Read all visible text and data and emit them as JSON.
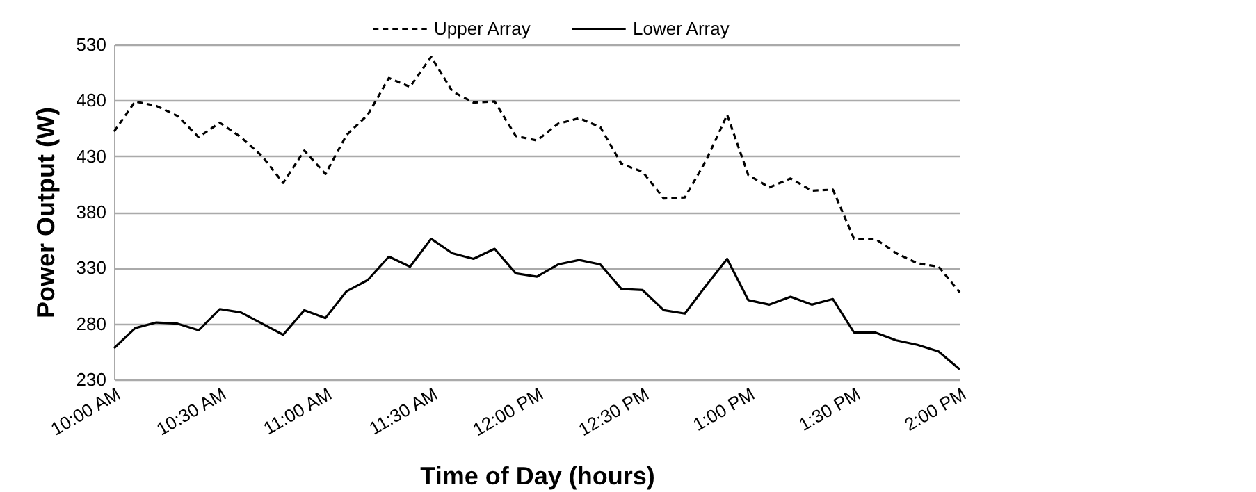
{
  "chart_data": {
    "type": "line",
    "xlabel": "Time of Day (hours)",
    "ylabel": "Power Output (W)",
    "categories": [
      "10:00 AM",
      null,
      null,
      null,
      null,
      "10:30 AM",
      null,
      null,
      null,
      null,
      "11:00 AM",
      null,
      null,
      null,
      null,
      "11:30 AM",
      null,
      null,
      null,
      null,
      "12:00 PM",
      null,
      null,
      null,
      null,
      "12:30 PM",
      null,
      null,
      null,
      null,
      "1:00 PM",
      null,
      null,
      null,
      null,
      "1:30 PM",
      null,
      null,
      null,
      null,
      "2:00 PM"
    ],
    "series": [
      {
        "name": "Upper Array",
        "color": "#000000",
        "line_style": "dashed",
        "values": [
          452,
          479,
          475,
          466,
          447,
          460,
          447,
          430,
          406,
          435,
          414,
          449,
          467,
          500,
          492,
          519,
          488,
          478,
          479,
          448,
          444,
          459,
          464,
          456,
          423,
          416,
          392,
          393,
          426,
          467,
          413,
          402,
          410,
          399,
          400,
          356,
          356,
          343,
          334,
          331,
          308
        ]
      },
      {
        "name": "Lower Array",
        "color": "#000000",
        "line_style": "solid",
        "values": [
          258,
          276,
          281,
          280,
          274,
          293,
          290,
          280,
          270,
          292,
          285,
          309,
          319,
          340,
          331,
          356,
          343,
          338,
          347,
          325,
          322,
          333,
          337,
          333,
          311,
          310,
          292,
          289,
          314,
          338,
          301,
          297,
          304,
          297,
          302,
          272,
          272,
          265,
          261,
          255,
          239
        ]
      }
    ],
    "ylim": [
      230,
      530
    ],
    "yticks": [
      230,
      280,
      330,
      380,
      430,
      480,
      530
    ],
    "grid": "y",
    "legend": "top",
    "marker": "none"
  }
}
